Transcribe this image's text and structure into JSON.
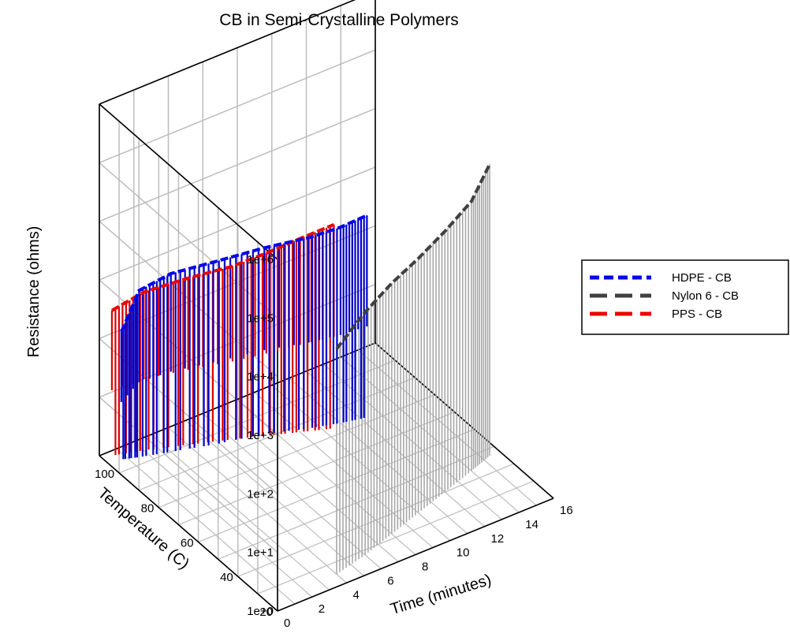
{
  "chart_data": {
    "type": "line",
    "subtype": "3d-waterfall",
    "title": "CB in Semi-Crystalline Polymers",
    "z_axis": {
      "label": "Resistance (ohms)",
      "scale": "log",
      "ticks": [
        "1e+0",
        "1e+1",
        "1e+2",
        "1e+3",
        "1e+4",
        "1e+5",
        "1e+6"
      ],
      "range": [
        1,
        1000000
      ]
    },
    "y_axis": {
      "label": "Temperature (C)",
      "ticks": [
        "20",
        "40",
        "60",
        "80",
        "100"
      ],
      "range": [
        20,
        110
      ]
    },
    "x_axis": {
      "label": "Time (minutes)",
      "ticks": [
        "0",
        "2",
        "4",
        "6",
        "8",
        "10",
        "12",
        "14",
        "16"
      ],
      "range": [
        0,
        16
      ]
    },
    "grid": true,
    "legend_position": "right",
    "series": [
      {
        "name": "HDPE - CB",
        "color": "#0000ee",
        "drop_color": "#0000cc",
        "dash": true,
        "points": [
          [
            0.7,
            105,
            150
          ],
          [
            1.5,
            103,
            700
          ],
          [
            3,
            100,
            1100
          ],
          [
            5,
            96,
            1300
          ],
          [
            7.5,
            92,
            1500
          ],
          [
            9.5,
            87,
            1800
          ],
          [
            11,
            84,
            2200
          ],
          [
            12.3,
            82,
            2800
          ]
        ]
      },
      {
        "name": "Nylon 6 - CB",
        "color": "#404040",
        "drop_color": "#a8a8a8",
        "dash": true,
        "points": [
          [
            4,
            25,
            7000
          ],
          [
            6,
            28,
            14000
          ],
          [
            8,
            32,
            19000
          ],
          [
            10,
            36,
            22000
          ],
          [
            12,
            40,
            28000
          ],
          [
            14,
            44,
            40000
          ],
          [
            15.4,
            47,
            95000
          ]
        ]
      },
      {
        "name": "PPS - CB",
        "color": "#ee0000",
        "drop_color": "#dd0000",
        "dash": true,
        "points": [
          [
            0.5,
            108,
            300
          ],
          [
            2,
            105,
            500
          ],
          [
            4,
            100,
            700
          ],
          [
            6,
            95,
            900
          ],
          [
            7.5,
            91,
            1300
          ],
          [
            9,
            87,
            2000
          ],
          [
            10.5,
            83,
            3000
          ]
        ]
      }
    ]
  }
}
